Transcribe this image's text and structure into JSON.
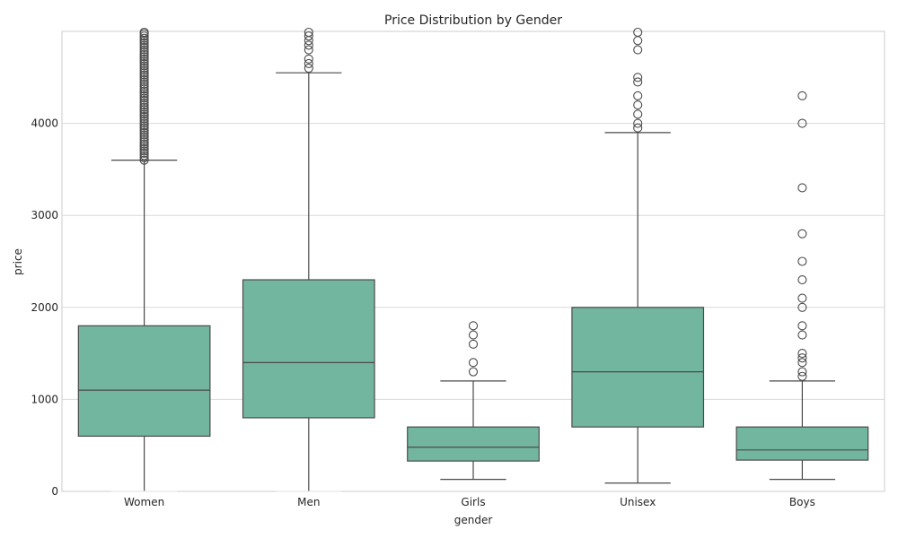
{
  "chart_data": {
    "type": "box",
    "title": "Price Distribution by Gender",
    "xlabel": "gender",
    "ylabel": "price",
    "ylim": [
      0,
      5000
    ],
    "yticks": [
      0,
      1000,
      2000,
      3000,
      4000
    ],
    "grid": true,
    "box_color": "#73b6a0",
    "line_color": "#4a4a4a",
    "grid_color": "#d9d9d9",
    "spine_color": "#cccccc",
    "categories": [
      "Women",
      "Men",
      "Girls",
      "Unisex",
      "Boys"
    ],
    "boxes": [
      {
        "category": "Women",
        "q1": 600,
        "median": 1100,
        "q3": 1800,
        "whisker_low": 0,
        "whisker_high": 3600,
        "outliers": [
          3600,
          3625,
          3650,
          3675,
          3700,
          3725,
          3750,
          3775,
          3800,
          3825,
          3850,
          3875,
          3900,
          3925,
          3950,
          3975,
          4000,
          4025,
          4050,
          4075,
          4100,
          4125,
          4150,
          4175,
          4200,
          4225,
          4250,
          4275,
          4300,
          4325,
          4350,
          4375,
          4400,
          4425,
          4450,
          4475,
          4500,
          4525,
          4550,
          4575,
          4600,
          4625,
          4650,
          4675,
          4700,
          4725,
          4750,
          4775,
          4800,
          4825,
          4850,
          4875,
          4900,
          4925,
          4950,
          4975,
          5000
        ]
      },
      {
        "category": "Men",
        "q1": 800,
        "median": 1400,
        "q3": 2300,
        "whisker_low": 0,
        "whisker_high": 4550,
        "outliers": [
          4600,
          4650,
          4700,
          4800,
          4850,
          4900,
          4950,
          5000
        ]
      },
      {
        "category": "Girls",
        "q1": 330,
        "median": 480,
        "q3": 700,
        "whisker_low": 130,
        "whisker_high": 1200,
        "outliers": [
          1300,
          1400,
          1600,
          1700,
          1800
        ]
      },
      {
        "category": "Unisex",
        "q1": 700,
        "median": 1300,
        "q3": 2000,
        "whisker_low": 90,
        "whisker_high": 3900,
        "outliers": [
          3950,
          4000,
          4100,
          4200,
          4300,
          4450,
          4500,
          4800,
          4900,
          5000
        ]
      },
      {
        "category": "Boys",
        "q1": 340,
        "median": 450,
        "q3": 700,
        "whisker_low": 130,
        "whisker_high": 1200,
        "outliers": [
          1250,
          1300,
          1400,
          1450,
          1500,
          1700,
          1800,
          2000,
          2100,
          2300,
          2500,
          2800,
          3300,
          4000,
          4300
        ]
      }
    ]
  }
}
